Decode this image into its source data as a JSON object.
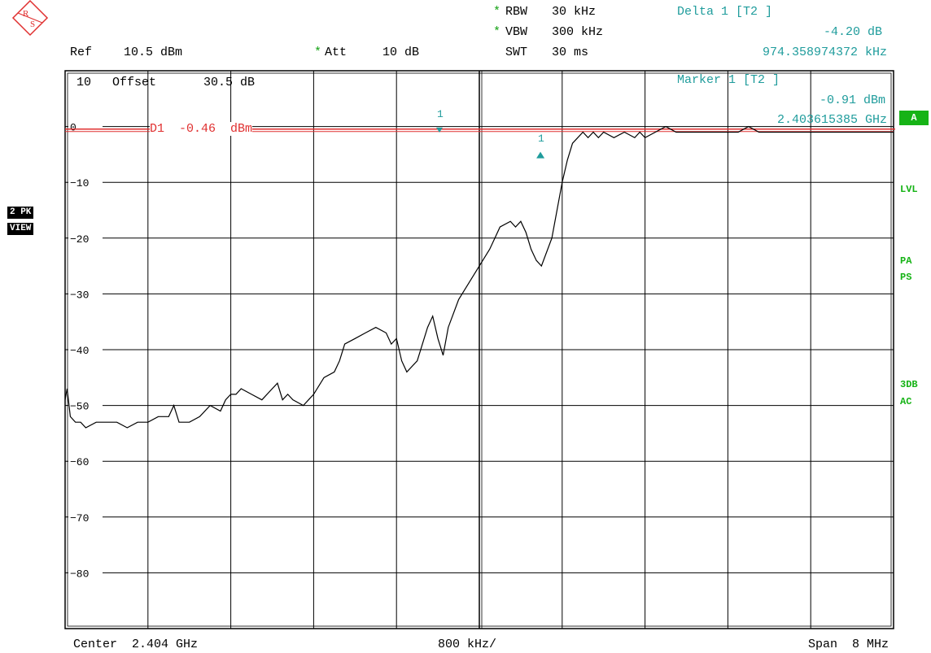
{
  "header": {
    "rbw_label": "RBW",
    "rbw_value": "30 kHz",
    "vbw_label": "VBW",
    "vbw_value": "300 kHz",
    "swt_label": "SWT",
    "swt_value": "30 ms",
    "star": "*",
    "ref_label": "Ref",
    "ref_value": "10.5 dBm",
    "att_label": "Att",
    "att_value": "10 dB",
    "delta_title": "Delta 1 [T2 ]",
    "delta_level": "-4.20 dB",
    "delta_freq": "974.358974372 kHz"
  },
  "plot": {
    "scale_div": "10",
    "offset_label": "Offset",
    "offset_value": "30.5 dB",
    "display_line_text": "D1  -0.46  dBm",
    "display_line_y_tick": "0",
    "marker_title": "Marker 1 [T2 ]",
    "marker_level": "-0.91 dBm",
    "marker_freq": "2.403615385 GHz",
    "marker1_label": "1",
    "delta_marker_label": "1"
  },
  "left_badges": {
    "trace_mode": "2 PK",
    "view": "VIEW"
  },
  "right_side": {
    "a_box": "A",
    "lvl": "LVL",
    "pa": "PA",
    "ps": "PS",
    "db3": "3DB",
    "ac": "AC"
  },
  "footer": {
    "center": "Center  2.404 GHz",
    "per_div": "800 kHz/",
    "span": "Span  8 MHz"
  },
  "colors": {
    "trace": "#000000",
    "grid": "#000000",
    "display_line": "#e03030",
    "marker": "#1f9c9c",
    "status": "#16b316"
  },
  "chart_data": {
    "type": "line",
    "title": "",
    "xlabel": "",
    "ylabel": "",
    "x_unit": "MHz",
    "y_unit": "dBm",
    "xlim": [
      2400.0,
      2408.0
    ],
    "ylim": [
      -90,
      10
    ],
    "y_ticks": [
      "0",
      "-10",
      "-20",
      "-30",
      "-40",
      "-50",
      "-60",
      "-70",
      "-80"
    ],
    "y_tick_values": [
      0,
      -10,
      -20,
      -30,
      -40,
      -50,
      -60,
      -70,
      -80
    ],
    "grid": true,
    "display_line_dbm": -0.46,
    "markers": [
      {
        "name": "1",
        "x": 2403.615,
        "y": -0.91
      },
      {
        "name": "1",
        "x": 2404.59,
        "y": -5.11
      }
    ],
    "series": [
      {
        "x": [
          2400.0,
          2400.02,
          2400.05,
          2400.1,
          2400.15,
          2400.2,
          2400.3,
          2400.4,
          2400.5,
          2400.6,
          2400.7,
          2400.8,
          2400.9,
          2401.0,
          2401.05,
          2401.1,
          2401.2,
          2401.3,
          2401.4,
          2401.5,
          2401.55,
          2401.6,
          2401.65,
          2401.7,
          2401.8,
          2401.9,
          2402.0,
          2402.05,
          2402.1,
          2402.15,
          2402.2,
          2402.3,
          2402.4,
          2402.5,
          2402.6,
          2402.65,
          2402.7,
          2402.8,
          2402.9,
          2403.0,
          2403.1,
          2403.15,
          2403.2,
          2403.25,
          2403.3,
          2403.4,
          2403.5,
          2403.55,
          2403.6,
          2403.65,
          2403.7,
          2403.8,
          2403.9,
          2404.0,
          2404.1,
          2404.15,
          2404.2,
          2404.3,
          2404.35,
          2404.4,
          2404.45,
          2404.5,
          2404.55,
          2404.6,
          2404.7,
          2404.8,
          2404.85,
          2404.9,
          2404.95,
          2405.0,
          2405.05,
          2405.1,
          2405.15,
          2405.2,
          2405.3,
          2405.4,
          2405.5,
          2405.55,
          2405.6,
          2405.7,
          2405.8,
          2405.9,
          2406.0,
          2406.1,
          2406.2,
          2406.3,
          2406.4,
          2406.5,
          2406.6,
          2406.7,
          2406.8,
          2406.9,
          2407.0,
          2407.1,
          2407.2,
          2407.3,
          2407.4,
          2407.5,
          2407.6,
          2407.7,
          2407.8,
          2407.9,
          2408.0
        ],
        "y": [
          -49,
          -47,
          -52,
          -53,
          -53,
          -54,
          -53,
          -53,
          -53,
          -54,
          -53,
          -53,
          -52,
          -52,
          -50,
          -53,
          -53,
          -52,
          -50,
          -51,
          -49,
          -48,
          -48,
          -47,
          -48,
          -49,
          -47,
          -46,
          -49,
          -48,
          -49,
          -50,
          -48,
          -45,
          -44,
          -42,
          -39,
          -38,
          -37,
          -36,
          -37,
          -39,
          -38,
          -42,
          -44,
          -42,
          -36,
          -34,
          -38,
          -41,
          -36,
          -31,
          -28,
          -25,
          -22,
          -20,
          -18,
          -17,
          -18,
          -17,
          -19,
          -22,
          -24,
          -25,
          -20,
          -10,
          -6,
          -3,
          -2,
          -1,
          -2,
          -1,
          -2,
          -1,
          -2,
          -1,
          -2,
          -1,
          -2,
          -1,
          0,
          -1,
          -1,
          -1,
          -1,
          -1,
          -1,
          -1,
          0,
          -1,
          -1,
          -1,
          -1,
          -1,
          -1,
          -1,
          -1,
          -1,
          -1,
          -1,
          -1,
          -1,
          -1
        ]
      }
    ]
  }
}
